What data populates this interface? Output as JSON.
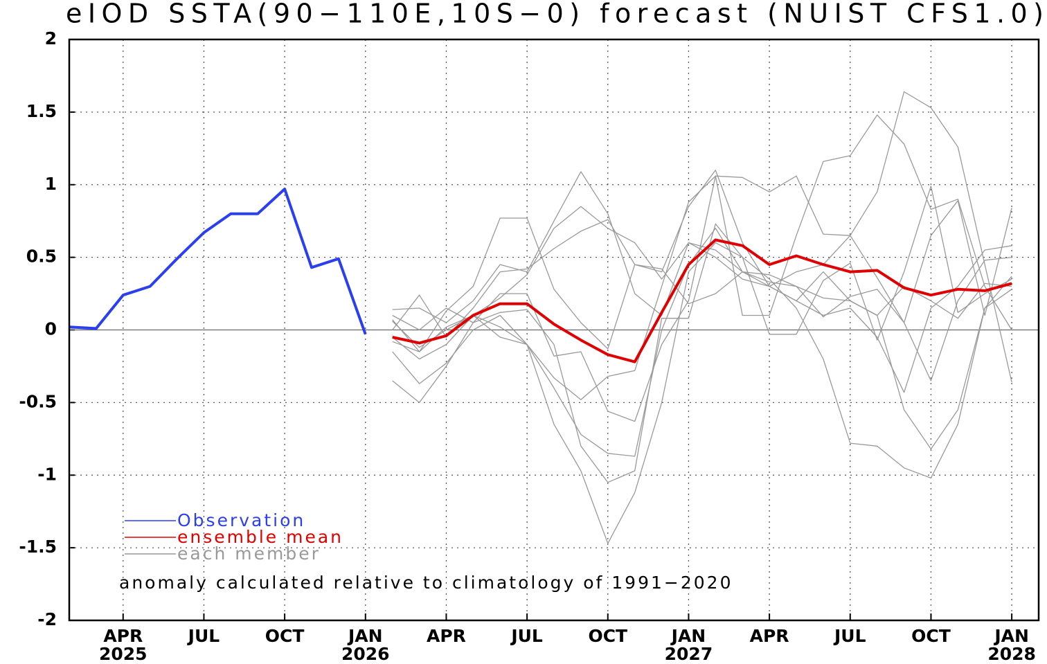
{
  "chart_data": {
    "type": "line",
    "title": "eIOD SSTA(90−110E,10S−0) forecast (NUIST CFS1.0)",
    "annotation": "anomaly calculated relative to climatology of 1991−2020",
    "xlim": [
      "2025-02",
      "2028-02"
    ],
    "ylim": [
      -2,
      2
    ],
    "yticks": [
      -2,
      -1.5,
      -1,
      -0.5,
      0,
      0.5,
      1,
      1.5,
      2
    ],
    "xticks": [
      {
        "value": "2025-04",
        "label": "APR",
        "sublabel": "2025"
      },
      {
        "value": "2025-07",
        "label": "JUL"
      },
      {
        "value": "2025-10",
        "label": "OCT"
      },
      {
        "value": "2026-01",
        "label": "JAN",
        "sublabel": "2026"
      },
      {
        "value": "2026-04",
        "label": "APR"
      },
      {
        "value": "2026-07",
        "label": "JUL"
      },
      {
        "value": "2026-10",
        "label": "OCT"
      },
      {
        "value": "2027-01",
        "label": "JAN",
        "sublabel": "2027"
      },
      {
        "value": "2027-04",
        "label": "APR"
      },
      {
        "value": "2027-07",
        "label": "JUL"
      },
      {
        "value": "2027-10",
        "label": "OCT"
      },
      {
        "value": "2028-01",
        "label": "JAN",
        "sublabel": "2028"
      }
    ],
    "grid": true,
    "series": [
      {
        "name": "Observation",
        "color": "#2a3ff0",
        "width": 4,
        "x": [
          "2025-02",
          "2025-03",
          "2025-04",
          "2025-05",
          "2025-06",
          "2025-07",
          "2025-08",
          "2025-09",
          "2025-10",
          "2025-11",
          "2025-12",
          "2026-01"
        ],
        "values": [
          0.02,
          0.01,
          0.24,
          0.3,
          0.49,
          0.67,
          0.8,
          0.8,
          0.97,
          0.43,
          0.49,
          -0.03
        ]
      },
      {
        "name": "ensemble mean",
        "color": "#e00000",
        "width": 4,
        "x": [
          "2026-02",
          "2026-03",
          "2026-04",
          "2026-05",
          "2026-06",
          "2026-07",
          "2026-08",
          "2026-09",
          "2026-10",
          "2026-11",
          "2026-12",
          "2027-01",
          "2027-02",
          "2027-03",
          "2027-04",
          "2027-05",
          "2027-06",
          "2027-07",
          "2027-08",
          "2027-09",
          "2027-10",
          "2027-11",
          "2027-12",
          "2028-01"
        ],
        "values": [
          -0.05,
          -0.09,
          -0.04,
          0.1,
          0.18,
          0.18,
          0.04,
          -0.07,
          -0.17,
          -0.22,
          0.12,
          0.45,
          0.62,
          0.58,
          0.45,
          0.51,
          0.45,
          0.4,
          0.41,
          0.29,
          0.24,
          0.28,
          0.27,
          0.32
        ]
      },
      {
        "name": "each member",
        "color": "#999999",
        "width": 1.3,
        "x": [
          "2026-02",
          "2026-03",
          "2026-04",
          "2026-05",
          "2026-06",
          "2026-07",
          "2026-08",
          "2026-09",
          "2026-10",
          "2026-11",
          "2026-12",
          "2027-01",
          "2027-02",
          "2027-03",
          "2027-04",
          "2027-05",
          "2027-06",
          "2027-07",
          "2027-08",
          "2027-09",
          "2027-10",
          "2027-11",
          "2027-12",
          "2028-01"
        ],
        "members": [
          [
            0.06,
            -0.12,
            0.0,
            0.1,
            -0.05,
            -0.1,
            -0.65,
            -0.97,
            -1.47,
            -1.12,
            -0.5,
            0.4,
            0.6,
            0.5,
            0.35,
            0.15,
            -0.2,
            -0.78,
            -0.8,
            -0.95,
            -1.02,
            -0.65,
            0.15,
            0.37
          ],
          [
            0.14,
            0.15,
            0.05,
            0.2,
            0.45,
            0.4,
            0.75,
            1.09,
            0.8,
            0.25,
            0.1,
            0.6,
            0.5,
            0.35,
            0.3,
            0.2,
            0.1,
            0.15,
            -0.05,
            -0.43,
            0.15,
            0.3,
            0.55,
            0.58
          ],
          [
            0.07,
            -0.15,
            0.13,
            0.3,
            0.77,
            0.77,
            0.28,
            0.05,
            -0.13,
            0.45,
            0.4,
            0.85,
            1.1,
            0.6,
            0.3,
            0.4,
            0.45,
            0.65,
            0.95,
            1.64,
            1.53,
            1.26,
            0.45,
            -0.36
          ],
          [
            -0.35,
            -0.5,
            -0.25,
            0.05,
            0.25,
            0.25,
            -0.18,
            -0.15,
            -0.56,
            -0.63,
            -0.1,
            0.2,
            1.06,
            1.05,
            0.95,
            1.06,
            0.66,
            0.65,
            0.36,
            0.05,
            -0.35,
            0.2,
            0.48,
            0.5
          ],
          [
            -0.15,
            -0.37,
            -0.23,
            0.0,
            0.1,
            -0.1,
            -0.4,
            -0.72,
            -0.85,
            -0.87,
            0.0,
            0.45,
            0.7,
            0.4,
            0.3,
            0.2,
            0.4,
            0.2,
            0.1,
            -0.55,
            -0.82,
            -0.55,
            0.15,
            0.28
          ],
          [
            0.0,
            0.24,
            -0.05,
            0.15,
            0.4,
            0.42,
            0.56,
            0.68,
            0.76,
            0.45,
            0.42,
            0.18,
            0.25,
            0.4,
            0.33,
            0.3,
            0.09,
            0.23,
            0.28,
            0.05,
            0.65,
            0.89,
            0.1,
            0.84
          ],
          [
            -0.08,
            -0.15,
            0.02,
            0.1,
            0.02,
            -0.1,
            -0.33,
            -0.48,
            -0.32,
            -0.28,
            0.3,
            0.88,
            1.06,
            0.1,
            0.1,
            0.65,
            1.16,
            1.2,
            1.48,
            1.28,
            0.83,
            0.9,
            0.3,
            0.0
          ],
          [
            0.1,
            0.0,
            0.15,
            0.05,
            0.12,
            0.14,
            -0.1,
            -0.8,
            -1.05,
            -0.97,
            0.08,
            0.08,
            0.73,
            0.5,
            -0.03,
            -0.03,
            0.34,
            0.46,
            -0.07,
            0.4,
            0.99,
            0.12,
            0.25,
            0.35
          ],
          [
            -0.05,
            -0.2,
            -0.1,
            0.1,
            0.22,
            0.38,
            0.7,
            0.85,
            0.7,
            0.6,
            0.35,
            0.6,
            0.55,
            0.4,
            0.38,
            0.3,
            0.22,
            0.2,
            0.1,
            0.3,
            0.2,
            0.08,
            0.32,
            0.3
          ]
        ]
      }
    ]
  }
}
